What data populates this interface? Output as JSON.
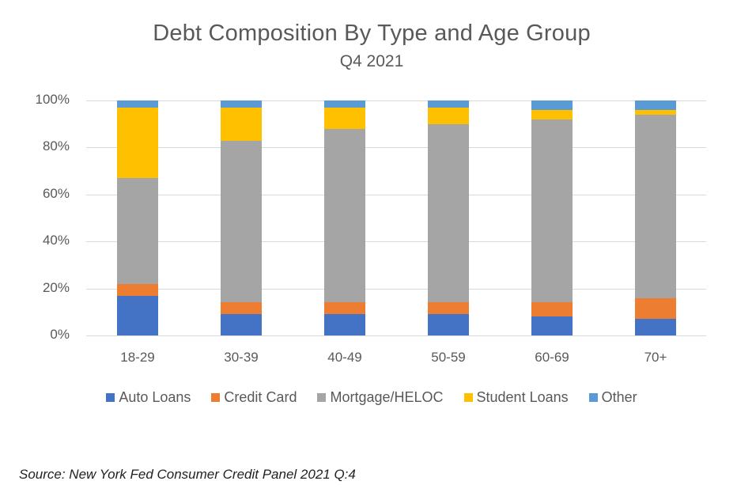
{
  "chart_data": {
    "type": "bar",
    "stacked": true,
    "percent_stacked": true,
    "title": "Debt Composition By Type and Age Group",
    "subtitle": "Q4 2021",
    "xlabel": "",
    "ylabel": "",
    "ylim": [
      0,
      100
    ],
    "yticks": [
      "0%",
      "20%",
      "40%",
      "60%",
      "80%",
      "100%"
    ],
    "grid": true,
    "legend_position": "bottom",
    "categories": [
      "18-29",
      "30-39",
      "40-49",
      "50-59",
      "60-69",
      "70+"
    ],
    "series": [
      {
        "name": "Auto Loans",
        "color": "#4472C4",
        "values": [
          17,
          9,
          9,
          9,
          8,
          7
        ]
      },
      {
        "name": "Credit Card",
        "color": "#ED7D31",
        "values": [
          5,
          5,
          5,
          5,
          6,
          9
        ]
      },
      {
        "name": "Mortgage/HELOC",
        "color": "#A5A5A5",
        "values": [
          45,
          69,
          74,
          76,
          78,
          78
        ]
      },
      {
        "name": "Student Loans",
        "color": "#FFC000",
        "values": [
          30,
          14,
          9,
          7,
          4,
          2
        ]
      },
      {
        "name": "Other",
        "color": "#5B9BD5",
        "values": [
          3,
          3,
          3,
          3,
          4,
          4
        ]
      }
    ]
  },
  "source_note": "Source: New York Fed Consumer Credit Panel 2021 Q:4"
}
